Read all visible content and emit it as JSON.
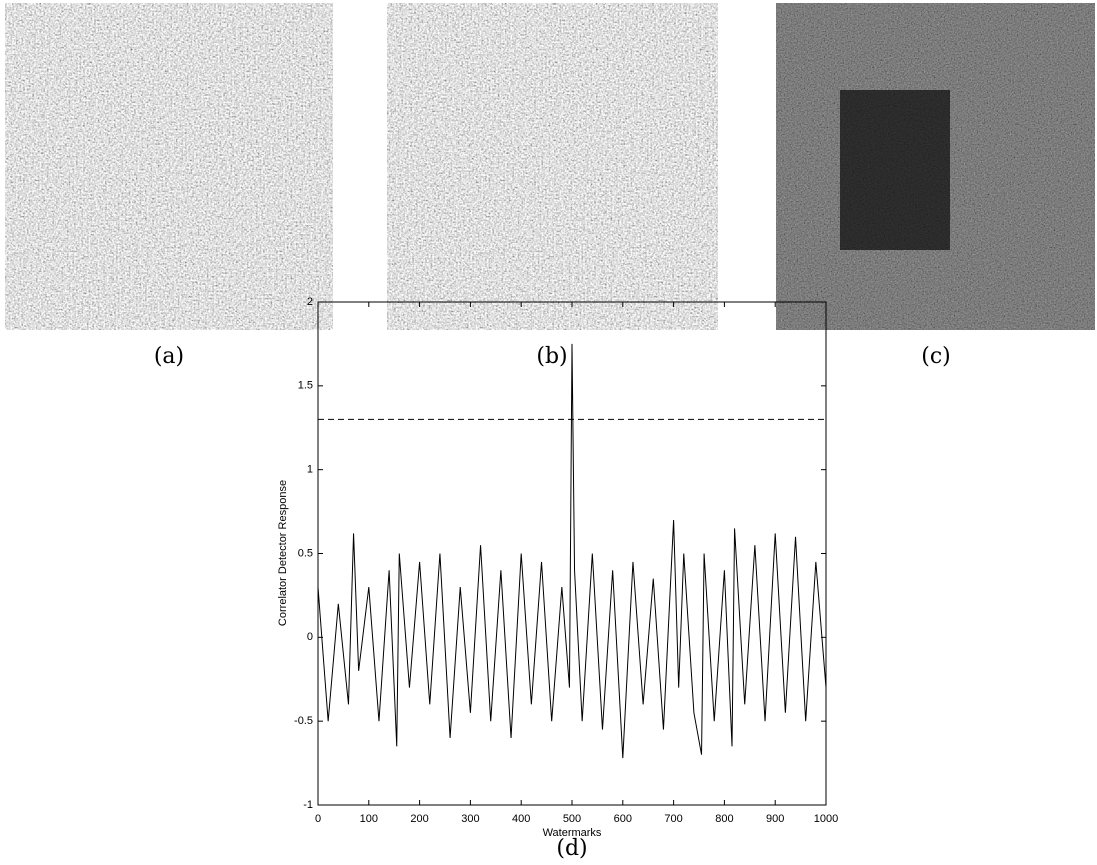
{
  "panels": [
    {
      "caption": "(a)"
    },
    {
      "caption": "(b)"
    },
    {
      "caption": "(c)"
    }
  ],
  "chart_data": {
    "type": "line",
    "caption": "(d)",
    "x_label": "Watermarks",
    "y_label": "Correlator Detector Response",
    "series": [
      {
        "color": "#000000",
        "dash": false,
        "x": [
          0,
          20,
          40,
          60,
          70,
          80,
          100,
          120,
          140,
          155,
          160,
          180,
          200,
          220,
          240,
          260,
          280,
          300,
          320,
          340,
          360,
          380,
          400,
          420,
          440,
          460,
          480,
          495,
          500,
          505,
          520,
          540,
          560,
          580,
          600,
          620,
          640,
          660,
          680,
          700,
          710,
          720,
          740,
          755,
          760,
          780,
          800,
          815,
          820,
          840,
          860,
          880,
          900,
          920,
          940,
          960,
          980,
          1000
        ],
        "values": [
          0.3,
          -0.5,
          0.2,
          -0.4,
          0.62,
          -0.2,
          0.3,
          -0.5,
          0.4,
          -0.65,
          0.5,
          -0.3,
          0.45,
          -0.4,
          0.5,
          -0.6,
          0.3,
          -0.45,
          0.55,
          -0.5,
          0.4,
          -0.6,
          0.5,
          -0.4,
          0.45,
          -0.5,
          0.3,
          -0.3,
          1.75,
          0.4,
          -0.5,
          0.5,
          -0.55,
          0.4,
          -0.72,
          0.45,
          -0.4,
          0.35,
          -0.55,
          0.7,
          -0.3,
          0.5,
          -0.45,
          -0.7,
          0.5,
          -0.5,
          0.4,
          -0.65,
          0.65,
          -0.4,
          0.55,
          -0.5,
          0.62,
          -0.45,
          0.6,
          -0.5,
          0.45,
          -0.3
        ]
      },
      {
        "color": "#000000",
        "dash": true,
        "x": [
          0,
          1000
        ],
        "values": [
          1.3,
          1.3
        ]
      }
    ],
    "xlim": [
      0,
      1000
    ],
    "xticks": [
      0,
      100,
      200,
      300,
      400,
      500,
      600,
      700,
      800,
      900,
      1000
    ],
    "ylim": [
      -1,
      2
    ],
    "yticks": [
      -1,
      -0.5,
      0,
      0.5,
      1,
      1.5,
      2
    ]
  }
}
